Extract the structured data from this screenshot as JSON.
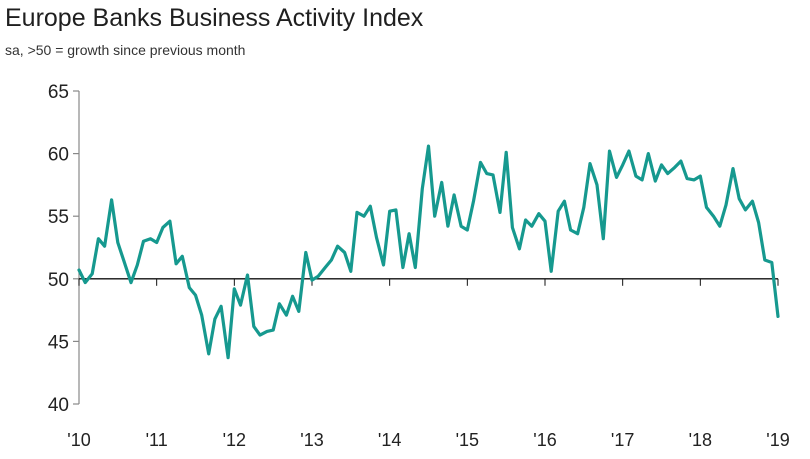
{
  "title": "Europe Banks Business Activity Index",
  "subtitle": "sa, >50 = growth since previous month",
  "colors": {
    "line": "#16998f",
    "axis": "#888888",
    "baseline": "#111111"
  },
  "chart_data": {
    "type": "line",
    "title": "Europe Banks Business Activity Index",
    "subtitle": "sa, >50 = growth since previous month",
    "xlabel": "",
    "ylabel": "",
    "ylim": [
      40,
      65
    ],
    "xlim": [
      2010.0,
      2019.0
    ],
    "y_ticks": [
      "40",
      "45",
      "50",
      "55",
      "60",
      "65"
    ],
    "x_ticks": [
      "'10",
      "'11",
      "'12",
      "'13",
      "'14",
      "'15",
      "'16",
      "'17",
      "'18",
      "'19"
    ],
    "reference_line": 50,
    "grid": false,
    "series": [
      {
        "values": [
          [
            2010.0,
            50.7
          ],
          [
            2010.08,
            49.7
          ],
          [
            2010.17,
            50.4
          ],
          [
            2010.25,
            53.2
          ],
          [
            2010.33,
            52.6
          ],
          [
            2010.42,
            56.3
          ],
          [
            2010.5,
            52.9
          ],
          [
            2010.58,
            51.4
          ],
          [
            2010.67,
            49.7
          ],
          [
            2010.75,
            51.1
          ],
          [
            2010.83,
            53.0
          ],
          [
            2010.92,
            53.2
          ],
          [
            2011.0,
            52.9
          ],
          [
            2011.08,
            54.1
          ],
          [
            2011.17,
            54.6
          ],
          [
            2011.25,
            51.2
          ],
          [
            2011.33,
            51.8
          ],
          [
            2011.42,
            49.3
          ],
          [
            2011.5,
            48.7
          ],
          [
            2011.58,
            47.1
          ],
          [
            2011.67,
            44.0
          ],
          [
            2011.75,
            46.8
          ],
          [
            2011.83,
            47.8
          ],
          [
            2011.92,
            43.7
          ],
          [
            2012.0,
            49.2
          ],
          [
            2012.08,
            47.9
          ],
          [
            2012.17,
            50.3
          ],
          [
            2012.25,
            46.2
          ],
          [
            2012.33,
            45.5
          ],
          [
            2012.42,
            45.8
          ],
          [
            2012.5,
            45.9
          ],
          [
            2012.58,
            48.0
          ],
          [
            2012.67,
            47.1
          ],
          [
            2012.75,
            48.6
          ],
          [
            2012.83,
            47.4
          ],
          [
            2012.92,
            52.1
          ],
          [
            2013.0,
            49.9
          ],
          [
            2013.08,
            50.2
          ],
          [
            2013.17,
            50.9
          ],
          [
            2013.25,
            51.5
          ],
          [
            2013.33,
            52.6
          ],
          [
            2013.42,
            52.1
          ],
          [
            2013.5,
            50.6
          ],
          [
            2013.58,
            55.3
          ],
          [
            2013.67,
            55.0
          ],
          [
            2013.75,
            55.8
          ],
          [
            2013.83,
            53.3
          ],
          [
            2013.92,
            51.1
          ],
          [
            2014.0,
            55.4
          ],
          [
            2014.08,
            55.5
          ],
          [
            2014.17,
            50.9
          ],
          [
            2014.25,
            53.6
          ],
          [
            2014.33,
            50.9
          ],
          [
            2014.42,
            57.2
          ],
          [
            2014.5,
            60.6
          ],
          [
            2014.58,
            55.0
          ],
          [
            2014.67,
            57.7
          ],
          [
            2014.75,
            54.2
          ],
          [
            2014.83,
            56.7
          ],
          [
            2014.92,
            54.2
          ],
          [
            2015.0,
            53.9
          ],
          [
            2015.08,
            56.2
          ],
          [
            2015.17,
            59.3
          ],
          [
            2015.25,
            58.4
          ],
          [
            2015.33,
            58.3
          ],
          [
            2015.42,
            55.3
          ],
          [
            2015.5,
            60.1
          ],
          [
            2015.58,
            54.1
          ],
          [
            2015.67,
            52.4
          ],
          [
            2015.75,
            54.7
          ],
          [
            2015.83,
            54.2
          ],
          [
            2015.92,
            55.2
          ],
          [
            2016.0,
            54.6
          ],
          [
            2016.08,
            50.6
          ],
          [
            2016.17,
            55.4
          ],
          [
            2016.25,
            56.2
          ],
          [
            2016.33,
            53.9
          ],
          [
            2016.42,
            53.6
          ],
          [
            2016.5,
            55.7
          ],
          [
            2016.58,
            59.2
          ],
          [
            2016.67,
            57.5
          ],
          [
            2016.75,
            53.2
          ],
          [
            2016.83,
            60.2
          ],
          [
            2016.92,
            58.1
          ],
          [
            2017.0,
            59.1
          ],
          [
            2017.08,
            60.2
          ],
          [
            2017.17,
            58.2
          ],
          [
            2017.25,
            57.9
          ],
          [
            2017.33,
            60.0
          ],
          [
            2017.42,
            57.8
          ],
          [
            2017.5,
            59.1
          ],
          [
            2017.58,
            58.4
          ],
          [
            2017.67,
            58.9
          ],
          [
            2017.75,
            59.4
          ],
          [
            2017.83,
            58.0
          ],
          [
            2017.92,
            57.9
          ],
          [
            2018.0,
            58.2
          ],
          [
            2018.08,
            55.7
          ],
          [
            2018.17,
            55.0
          ],
          [
            2018.25,
            54.2
          ],
          [
            2018.33,
            55.9
          ],
          [
            2018.42,
            58.8
          ],
          [
            2018.5,
            56.4
          ],
          [
            2018.58,
            55.5
          ],
          [
            2018.67,
            56.2
          ],
          [
            2018.75,
            54.5
          ],
          [
            2018.83,
            51.5
          ],
          [
            2018.92,
            51.3
          ],
          [
            2019.0,
            47.0
          ]
        ]
      }
    ]
  }
}
